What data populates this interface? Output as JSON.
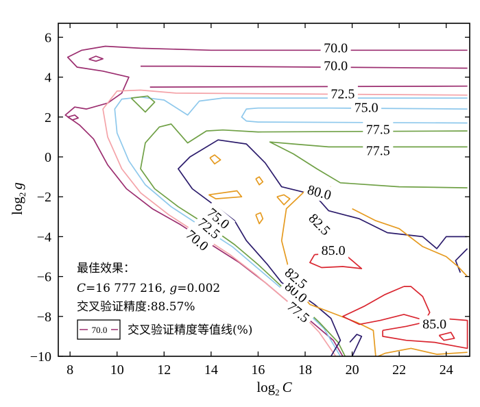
{
  "chart_data": {
    "type": "contour",
    "xlabel_base": "log",
    "xlabel_sub": "2",
    "xlabel_var": "C",
    "ylabel_base": "log",
    "ylabel_sub": "2",
    "ylabel_var": "g",
    "xlim": [
      7.5,
      25
    ],
    "ylim": [
      -10,
      6.7
    ],
    "x_ticks": [
      8,
      10,
      12,
      14,
      16,
      18,
      20,
      22,
      24
    ],
    "y_ticks": [
      6,
      4,
      2,
      0,
      -2,
      -4,
      -6,
      -8,
      -10
    ],
    "y_tick_labels": [
      "6",
      "4",
      "2",
      "0",
      "−2",
      "−4",
      "−6",
      "−8",
      "−10"
    ],
    "levels": [
      {
        "value": 70.0,
        "color": "#9b2d6f",
        "lines": [
          [
            [
              24.9,
              5.35
            ],
            [
              14,
              5.35
            ],
            [
              11,
              5.45
            ],
            [
              9.5,
              5.55
            ],
            [
              8.5,
              5.35
            ],
            [
              7.9,
              5.0
            ],
            [
              8.3,
              4.5
            ],
            [
              9.4,
              4.3
            ],
            [
              10.5,
              4.0
            ],
            [
              10.2,
              3.2
            ],
            [
              9.6,
              2.7
            ],
            [
              8.7,
              2.4
            ],
            [
              8.2,
              2.5
            ],
            [
              7.8,
              2.1
            ],
            [
              8.4,
              1.6
            ],
            [
              9.0,
              0.9
            ],
            [
              9.6,
              -0.4
            ],
            [
              10.4,
              -1.6
            ],
            [
              11.5,
              -2.6
            ],
            [
              12.7,
              -3.4
            ],
            [
              14.0,
              -4.4
            ],
            [
              15.2,
              -5.3
            ],
            [
              16.3,
              -6.3
            ],
            [
              17.3,
              -7.3
            ],
            [
              18.3,
              -8.3
            ],
            [
              19.2,
              -9.2
            ],
            [
              19.6,
              -10.0
            ]
          ],
          [
            [
              24.9,
              4.45
            ],
            [
              13.0,
              4.55
            ],
            [
              11.0,
              4.55
            ]
          ],
          [
            [
              24.9,
              3.55
            ],
            [
              11.4,
              3.5
            ]
          ],
          [
            [
              8.8,
              4.9
            ],
            [
              9.1,
              5.05
            ],
            [
              9.4,
              4.92
            ],
            [
              9.1,
              4.8
            ],
            [
              8.8,
              4.9
            ]
          ],
          [
            [
              7.9,
              2.0
            ],
            [
              8.2,
              2.1
            ],
            [
              8.35,
              1.95
            ],
            [
              8.1,
              1.85
            ],
            [
              7.9,
              2.0
            ]
          ]
        ],
        "labels": [
          {
            "text": "70.0",
            "x": 19.3,
            "y": 5.45
          },
          {
            "text": "70.0",
            "x": 19.3,
            "y": 4.55
          },
          {
            "text": "70.0",
            "x": 13.4,
            "y": -4.2,
            "rotate": 40
          }
        ]
      },
      {
        "value": 72.5,
        "color": "#f4a3a8",
        "lines": [
          [
            [
              24.9,
              3.1
            ],
            [
              12.5,
              3.2
            ],
            [
              11.0,
              3.35
            ],
            [
              10.0,
              3.3
            ],
            [
              9.4,
              2.4
            ],
            [
              9.6,
              1.0
            ],
            [
              10.2,
              -0.6
            ],
            [
              11.0,
              -1.8
            ],
            [
              12.2,
              -2.9
            ],
            [
              13.5,
              -3.9
            ],
            [
              14.8,
              -4.9
            ],
            [
              15.9,
              -5.9
            ],
            [
              16.9,
              -6.9
            ],
            [
              17.8,
              -7.8
            ],
            [
              18.6,
              -8.8
            ],
            [
              19.3,
              -10.0
            ]
          ]
        ],
        "labels": [
          {
            "text": "72.5",
            "x": 19.6,
            "y": 3.15
          },
          {
            "text": "72.5",
            "x": 13.9,
            "y": -3.6,
            "rotate": 40
          }
        ]
      },
      {
        "value": 75.0,
        "color": "#8ec8ec",
        "lines": [
          [
            [
              24.9,
              2.95
            ],
            [
              14.5,
              2.95
            ],
            [
              13.5,
              2.8
            ],
            [
              13.0,
              2.1
            ],
            [
              12.0,
              2.85
            ],
            [
              11.0,
              3.0
            ],
            [
              10.2,
              2.9
            ],
            [
              9.9,
              2.4
            ],
            [
              10.0,
              1.2
            ],
            [
              10.5,
              -0.2
            ],
            [
              11.2,
              -1.4
            ],
            [
              12.3,
              -2.5
            ],
            [
              13.6,
              -3.5
            ],
            [
              14.9,
              -4.5
            ],
            [
              16.0,
              -5.6
            ],
            [
              17.0,
              -6.6
            ],
            [
              17.9,
              -7.6
            ],
            [
              18.8,
              -8.6
            ],
            [
              19.5,
              -10.0
            ]
          ],
          [
            [
              24.9,
              2.4
            ],
            [
              19.0,
              2.45
            ],
            [
              16.0,
              2.45
            ],
            [
              15.5,
              2.4
            ],
            [
              15.3,
              2.0
            ],
            [
              15.5,
              1.8
            ],
            [
              16.0,
              1.75
            ],
            [
              24.9,
              1.7
            ]
          ]
        ],
        "labels": [
          {
            "text": "75.0",
            "x": 20.6,
            "y": 2.45
          },
          {
            "text": "75.0",
            "x": 14.3,
            "y": -3.1,
            "rotate": 40
          }
        ]
      },
      {
        "value": 77.5,
        "color": "#6fa045",
        "lines": [
          [
            [
              24.9,
              1.3
            ],
            [
              16.0,
              1.25
            ],
            [
              14.5,
              1.35
            ],
            [
              13.8,
              1.3
            ],
            [
              13.0,
              0.7
            ],
            [
              12.3,
              1.65
            ],
            [
              11.8,
              1.5
            ],
            [
              11.2,
              0.7
            ],
            [
              11.0,
              -0.6
            ],
            [
              11.6,
              -1.6
            ],
            [
              12.6,
              -2.5
            ],
            [
              13.8,
              -3.4
            ],
            [
              15.0,
              -4.4
            ],
            [
              16.0,
              -5.4
            ],
            [
              17.0,
              -6.5
            ],
            [
              17.8,
              -7.4
            ],
            [
              18.6,
              -8.3
            ],
            [
              19.4,
              -9.3
            ],
            [
              19.7,
              -10.0
            ]
          ],
          [
            [
              24.9,
              -1.55
            ],
            [
              22.0,
              -1.5
            ],
            [
              19.5,
              -1.3
            ],
            [
              18.5,
              -0.6
            ],
            [
              17.5,
              0.15
            ],
            [
              17.0,
              0.45
            ],
            [
              16.5,
              0.75
            ],
            [
              17.5,
              0.65
            ],
            [
              19.0,
              0.5
            ],
            [
              24.9,
              0.5
            ]
          ],
          [
            [
              10.6,
              2.95
            ],
            [
              11.3,
              3.05
            ],
            [
              11.6,
              2.75
            ],
            [
              11.2,
              2.25
            ],
            [
              10.6,
              2.95
            ]
          ]
        ],
        "labels": [
          {
            "text": "77.5",
            "x": 21.1,
            "y": 1.35
          },
          {
            "text": "77.5",
            "x": 21.1,
            "y": 0.3
          },
          {
            "text": "77.5",
            "x": 17.7,
            "y": -7.8,
            "rotate": 40
          }
        ]
      },
      {
        "value": 80.0,
        "color": "#2b1b6b",
        "lines": [
          [
            [
              24.9,
              -4.0
            ],
            [
              24.0,
              -4.0
            ],
            [
              23.6,
              -4.6
            ],
            [
              23.0,
              -4.0
            ],
            [
              21.5,
              -3.8
            ],
            [
              20.3,
              -3.1
            ],
            [
              19.0,
              -2.7
            ],
            [
              18.4,
              -1.9
            ],
            [
              17.0,
              -1.5
            ],
            [
              16.3,
              -0.3
            ],
            [
              15.5,
              0.65
            ],
            [
              14.3,
              0.85
            ],
            [
              13.1,
              0.0
            ],
            [
              12.6,
              -0.6
            ],
            [
              13.2,
              -1.6
            ],
            [
              14.0,
              -2.3
            ],
            [
              15.0,
              -3.2
            ],
            [
              15.5,
              -4.2
            ],
            [
              16.4,
              -5.4
            ],
            [
              17.0,
              -6.3
            ],
            [
              17.8,
              -6.9
            ],
            [
              18.4,
              -7.4
            ],
            [
              19.1,
              -8.1
            ],
            [
              19.5,
              -9.2
            ],
            [
              19.1,
              -10.0
            ]
          ],
          [
            [
              24.9,
              -4.6
            ],
            [
              24.4,
              -5.2
            ],
            [
              24.6,
              -5.8
            ]
          ],
          [
            [
              20.0,
              -10.0
            ],
            [
              20.4,
              -9.0
            ],
            [
              20.2,
              -8.9
            ],
            [
              19.9,
              -9.3
            ]
          ]
        ],
        "labels": [
          {
            "text": "80.0",
            "x": 18.6,
            "y": -1.8,
            "rotate": 15
          },
          {
            "text": "80.0",
            "x": 17.6,
            "y": -6.8,
            "rotate": 40
          }
        ]
      },
      {
        "value": 82.5,
        "color": "#e59a1f",
        "lines": [
          [
            [
              19.1,
              -1.5
            ],
            [
              18.0,
              -1.7
            ],
            [
              17.2,
              -2.6
            ],
            [
              17.0,
              -4.2
            ],
            [
              17.3,
              -5.6
            ],
            [
              17.4,
              -6.3
            ],
            [
              18.2,
              -7.4
            ],
            [
              19.1,
              -7.8
            ],
            [
              20.2,
              -8.3
            ],
            [
              20.9,
              -8.7
            ],
            [
              21.0,
              -10.0
            ]
          ],
          [
            [
              24.9,
              -9.8
            ],
            [
              23.6,
              -9.9
            ],
            [
              22.5,
              -9.6
            ],
            [
              21.4,
              -9.85
            ],
            [
              21.1,
              -10.0
            ]
          ],
          [
            [
              20.0,
              -2.6
            ],
            [
              21.0,
              -3.2
            ],
            [
              22.0,
              -3.6
            ],
            [
              23.0,
              -4.5
            ],
            [
              24.0,
              -5.0
            ],
            [
              24.5,
              -5.5
            ],
            [
              24.9,
              -6.0
            ]
          ],
          [
            [
              13.95,
              -0.05
            ],
            [
              14.15,
              0.1
            ],
            [
              14.4,
              -0.15
            ],
            [
              14.15,
              -0.35
            ],
            [
              13.95,
              -0.05
            ]
          ],
          [
            [
              13.9,
              -1.9
            ],
            [
              15.1,
              -1.7
            ],
            [
              15.3,
              -2.0
            ],
            [
              14.2,
              -2.1
            ],
            [
              13.9,
              -1.9
            ]
          ],
          [
            [
              15.9,
              -1.1
            ],
            [
              16.05,
              -1.0
            ],
            [
              16.2,
              -1.25
            ],
            [
              16.05,
              -1.4
            ],
            [
              15.9,
              -1.1
            ]
          ],
          [
            [
              16.8,
              -2.0
            ],
            [
              17.1,
              -1.9
            ],
            [
              17.35,
              -2.1
            ],
            [
              17.1,
              -2.4
            ],
            [
              16.8,
              -2.0
            ]
          ],
          [
            [
              15.9,
              -2.9
            ],
            [
              16.1,
              -2.8
            ],
            [
              16.2,
              -3.1
            ],
            [
              16.05,
              -3.35
            ],
            [
              15.9,
              -2.9
            ]
          ]
        ],
        "labels": [
          {
            "text": "82.5",
            "x": 18.6,
            "y": -3.4,
            "rotate": 45
          },
          {
            "text": "82.5",
            "x": 17.6,
            "y": -6.1,
            "rotate": 40
          }
        ]
      },
      {
        "value": 85.0,
        "color": "#d9252f",
        "lines": [
          [
            [
              18.4,
              -4.9
            ],
            [
              18.2,
              -5.3
            ],
            [
              18.7,
              -5.55
            ],
            [
              19.6,
              -5.5
            ],
            [
              20.4,
              -5.6
            ],
            [
              20.0,
              -5.2
            ],
            [
              19.6,
              -4.8
            ],
            [
              18.4,
              -4.9
            ]
          ],
          [
            [
              22.2,
              -6.5
            ],
            [
              21.4,
              -6.9
            ],
            [
              20.5,
              -7.5
            ],
            [
              19.6,
              -8.0
            ],
            [
              20.3,
              -8.4
            ],
            [
              21.2,
              -8.2
            ],
            [
              22.2,
              -7.9
            ],
            [
              23.1,
              -8.2
            ],
            [
              23.3,
              -7.8
            ],
            [
              23.0,
              -7.0
            ],
            [
              22.5,
              -6.5
            ],
            [
              22.2,
              -6.5
            ]
          ],
          [
            [
              21.3,
              -8.7
            ],
            [
              22.3,
              -8.5
            ],
            [
              23.8,
              -8.1
            ],
            [
              24.9,
              -8.2
            ],
            [
              24.9,
              -9.6
            ],
            [
              23.5,
              -9.3
            ],
            [
              22.3,
              -9.2
            ],
            [
              21.3,
              -9.0
            ],
            [
              21.3,
              -8.7
            ]
          ],
          [
            [
              23.7,
              -8.95
            ],
            [
              24.2,
              -8.8
            ],
            [
              24.35,
              -9.1
            ],
            [
              23.9,
              -9.2
            ],
            [
              23.7,
              -8.95
            ]
          ]
        ],
        "labels": [
          {
            "text": "85.0",
            "x": 19.2,
            "y": -4.7
          },
          {
            "text": "85.0",
            "x": 23.5,
            "y": -8.4
          }
        ]
      }
    ]
  },
  "annotation": {
    "line1": "最佳效果：",
    "line2_c_var": "C",
    "line2_c_val": "=16 777 216, ",
    "line2_g_var": "g",
    "line2_g_val": "=0.002",
    "line3": "交叉验证精度:88.57%",
    "legend_sample": "70.0",
    "legend_label": "交叉验证精度等值线(%)"
  }
}
